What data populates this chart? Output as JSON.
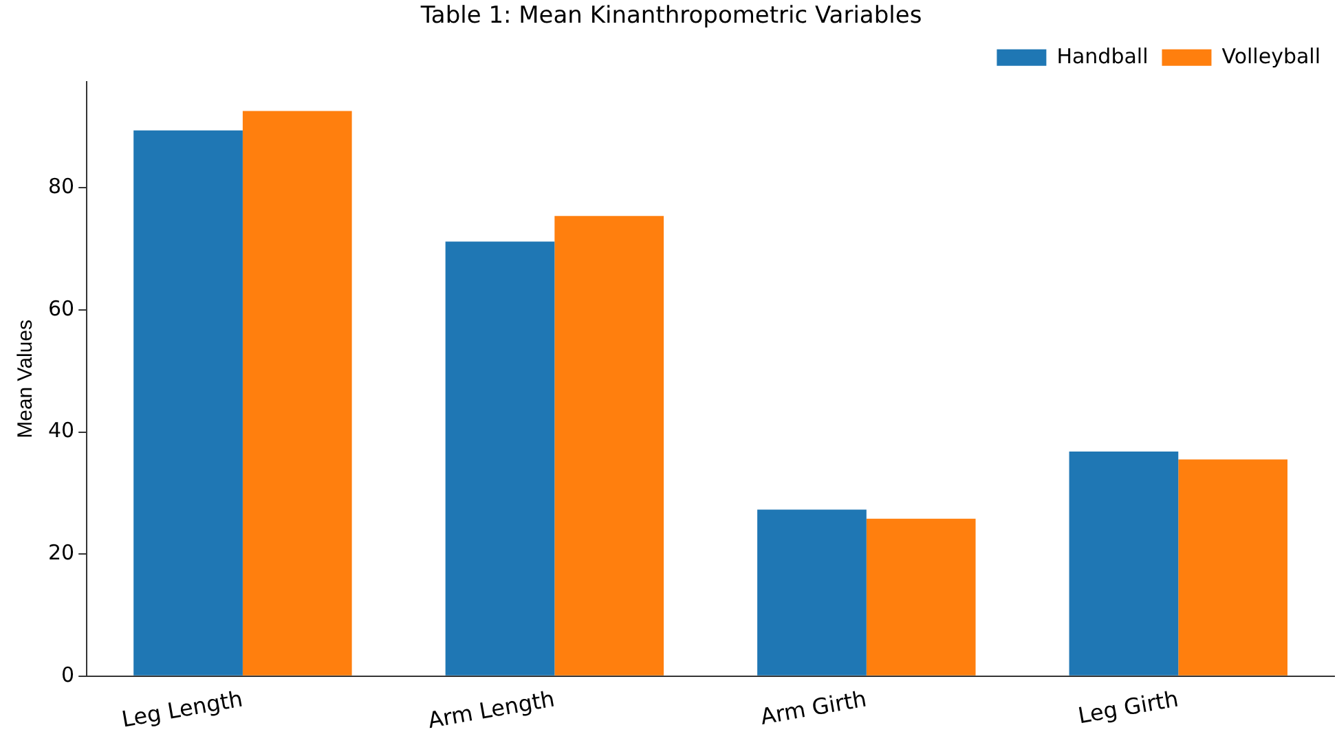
{
  "chart_data": {
    "type": "bar",
    "title": "Table 1: Mean Kinanthropometric Variables",
    "ylabel": "Mean Values",
    "categories": [
      "Leg Length",
      "Arm Length",
      "Arm Girth",
      "Leg Girth"
    ],
    "series": [
      {
        "name": "Handball",
        "color": "#1f77b4",
        "values": [
          89.4,
          71.2,
          27.3,
          36.8
        ]
      },
      {
        "name": "Volleyball",
        "color": "#ff7f0e",
        "values": [
          92.6,
          75.4,
          25.8,
          35.5
        ]
      }
    ],
    "ylim": [
      0,
      97.4
    ],
    "yticks": [
      0,
      20,
      40,
      60,
      80
    ],
    "grid": false,
    "legend": "top right"
  }
}
